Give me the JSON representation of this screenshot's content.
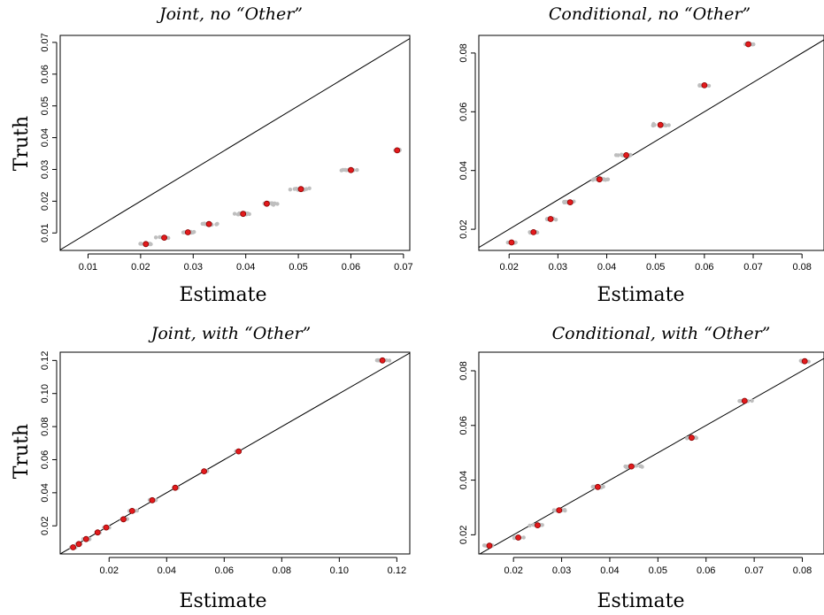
{
  "chart_data": [
    {
      "type": "scatter",
      "title": "Joint, no “Other”",
      "xlabel": "Estimate",
      "ylabel": "Truth",
      "xlim": [
        0.0047,
        0.0712
      ],
      "ylim": [
        0.0045,
        0.0722
      ],
      "xticks": [
        0.01,
        0.02,
        0.03,
        0.04,
        0.05,
        0.06,
        0.07
      ],
      "xtick_labels": [
        "0.01",
        "0.02",
        "0.03",
        "0.04",
        "0.05",
        "0.06",
        "0.07"
      ],
      "yticks": [
        0.01,
        0.02,
        0.03,
        0.04,
        0.05,
        0.06,
        0.07
      ],
      "ytick_labels": [
        "0.01",
        "0.02",
        "0.03",
        "0.04",
        "0.05",
        "0.06",
        "0.07"
      ],
      "reference_line": "y = x",
      "grid": false,
      "clusters": [
        {
          "truth": 0.0065,
          "mean": 0.021,
          "spread": 0.0028,
          "n": 12
        },
        {
          "truth": 0.0085,
          "mean": 0.0245,
          "spread": 0.0022,
          "n": 12
        },
        {
          "truth": 0.0102,
          "mean": 0.029,
          "spread": 0.0025,
          "n": 14
        },
        {
          "truth": 0.0128,
          "mean": 0.033,
          "spread": 0.0025,
          "n": 14
        },
        {
          "truth": 0.016,
          "mean": 0.0395,
          "spread": 0.003,
          "n": 16
        },
        {
          "truth": 0.0192,
          "mean": 0.044,
          "spread": 0.0035,
          "n": 16
        },
        {
          "truth": 0.0238,
          "mean": 0.0505,
          "spread": 0.0035,
          "n": 14
        },
        {
          "truth": 0.0298,
          "mean": 0.06,
          "spread": 0.0025,
          "n": 12
        },
        {
          "truth": 0.036,
          "mean": 0.0688,
          "spread": 0.0022,
          "n": 10
        }
      ]
    },
    {
      "type": "scatter",
      "title": "Conditional, no “Other”",
      "xlabel": "Estimate",
      "ylabel": "",
      "xlim": [
        0.0138,
        0.0845
      ],
      "ylim": [
        0.0128,
        0.086
      ],
      "xticks": [
        0.02,
        0.03,
        0.04,
        0.05,
        0.06,
        0.07,
        0.08
      ],
      "xtick_labels": [
        "0.02",
        "0.03",
        "0.04",
        "0.05",
        "0.06",
        "0.07",
        "0.08"
      ],
      "yticks": [
        0.02,
        0.04,
        0.06,
        0.08
      ],
      "ytick_labels": [
        "0.02",
        "0.04",
        "0.06",
        "0.08"
      ],
      "reference_line": "y = x",
      "grid": false,
      "clusters": [
        {
          "truth": 0.0155,
          "mean": 0.0205,
          "spread": 0.0022,
          "n": 10
        },
        {
          "truth": 0.019,
          "mean": 0.025,
          "spread": 0.0022,
          "n": 10
        },
        {
          "truth": 0.0235,
          "mean": 0.0285,
          "spread": 0.0025,
          "n": 12
        },
        {
          "truth": 0.0292,
          "mean": 0.0325,
          "spread": 0.0025,
          "n": 16
        },
        {
          "truth": 0.037,
          "mean": 0.0385,
          "spread": 0.003,
          "n": 16
        },
        {
          "truth": 0.0452,
          "mean": 0.044,
          "spread": 0.003,
          "n": 16
        },
        {
          "truth": 0.0555,
          "mean": 0.051,
          "spread": 0.0035,
          "n": 14
        },
        {
          "truth": 0.069,
          "mean": 0.06,
          "spread": 0.0025,
          "n": 10
        },
        {
          "truth": 0.083,
          "mean": 0.069,
          "spread": 0.0025,
          "n": 10
        }
      ]
    },
    {
      "type": "scatter",
      "title": "Joint, with “Other”",
      "xlabel": "Estimate",
      "ylabel": "Truth",
      "xlim": [
        0.003,
        0.1245
      ],
      "ylim": [
        0.003,
        0.125
      ],
      "xticks": [
        0.02,
        0.04,
        0.06,
        0.08,
        0.1,
        0.12
      ],
      "xtick_labels": [
        "0.02",
        "0.04",
        "0.06",
        "0.08",
        "0.10",
        "0.12"
      ],
      "yticks": [
        0.02,
        0.04,
        0.06,
        0.08,
        0.1,
        0.12
      ],
      "ytick_labels": [
        "0.02",
        "0.04",
        "0.06",
        "0.08",
        "0.10",
        "0.12"
      ],
      "reference_line": "y = x",
      "grid": false,
      "clusters": [
        {
          "truth": 0.007,
          "mean": 0.0075,
          "spread": 0.0018,
          "n": 10
        },
        {
          "truth": 0.009,
          "mean": 0.0095,
          "spread": 0.0018,
          "n": 10
        },
        {
          "truth": 0.012,
          "mean": 0.012,
          "spread": 0.002,
          "n": 12
        },
        {
          "truth": 0.016,
          "mean": 0.016,
          "spread": 0.0022,
          "n": 12
        },
        {
          "truth": 0.019,
          "mean": 0.019,
          "spread": 0.0022,
          "n": 12
        },
        {
          "truth": 0.024,
          "mean": 0.025,
          "spread": 0.0025,
          "n": 12
        },
        {
          "truth": 0.029,
          "mean": 0.028,
          "spread": 0.0025,
          "n": 12
        },
        {
          "truth": 0.0355,
          "mean": 0.035,
          "spread": 0.0025,
          "n": 12
        },
        {
          "truth": 0.043,
          "mean": 0.043,
          "spread": 0.002,
          "n": 10
        },
        {
          "truth": 0.053,
          "mean": 0.053,
          "spread": 0.0022,
          "n": 10
        },
        {
          "truth": 0.065,
          "mean": 0.065,
          "spread": 0.0022,
          "n": 10
        },
        {
          "truth": 0.12,
          "mean": 0.115,
          "spread": 0.0035,
          "n": 8
        }
      ]
    },
    {
      "type": "scatter",
      "title": "Conditional, with “Other”",
      "xlabel": "Estimate",
      "ylabel": "",
      "xlim": [
        0.0128,
        0.0845
      ],
      "ylim": [
        0.013,
        0.0868
      ],
      "xticks": [
        0.02,
        0.03,
        0.04,
        0.05,
        0.06,
        0.07,
        0.08
      ],
      "xtick_labels": [
        "0.02",
        "0.03",
        "0.04",
        "0.05",
        "0.06",
        "0.07",
        "0.08"
      ],
      "yticks": [
        0.02,
        0.04,
        0.06,
        0.08
      ],
      "ytick_labels": [
        "0.02",
        "0.04",
        "0.06",
        "0.08"
      ],
      "reference_line": "y = x",
      "grid": false,
      "clusters": [
        {
          "truth": 0.016,
          "mean": 0.015,
          "spread": 0.0025,
          "n": 10
        },
        {
          "truth": 0.019,
          "mean": 0.021,
          "spread": 0.0025,
          "n": 10
        },
        {
          "truth": 0.0235,
          "mean": 0.025,
          "spread": 0.0025,
          "n": 12
        },
        {
          "truth": 0.029,
          "mean": 0.0295,
          "spread": 0.0028,
          "n": 14
        },
        {
          "truth": 0.0375,
          "mean": 0.0375,
          "spread": 0.003,
          "n": 16
        },
        {
          "truth": 0.045,
          "mean": 0.0445,
          "spread": 0.0035,
          "n": 16
        },
        {
          "truth": 0.0555,
          "mean": 0.057,
          "spread": 0.003,
          "n": 12
        },
        {
          "truth": 0.069,
          "mean": 0.068,
          "spread": 0.0025,
          "n": 10
        },
        {
          "truth": 0.0835,
          "mean": 0.0805,
          "spread": 0.0025,
          "n": 10
        }
      ]
    }
  ],
  "colors": {
    "simulation_points": "#bebebe",
    "mean_point_fill": "#e31a1c",
    "mean_point_stroke": "#8b0000",
    "reference_line": "#000000",
    "frame": "#000000"
  }
}
